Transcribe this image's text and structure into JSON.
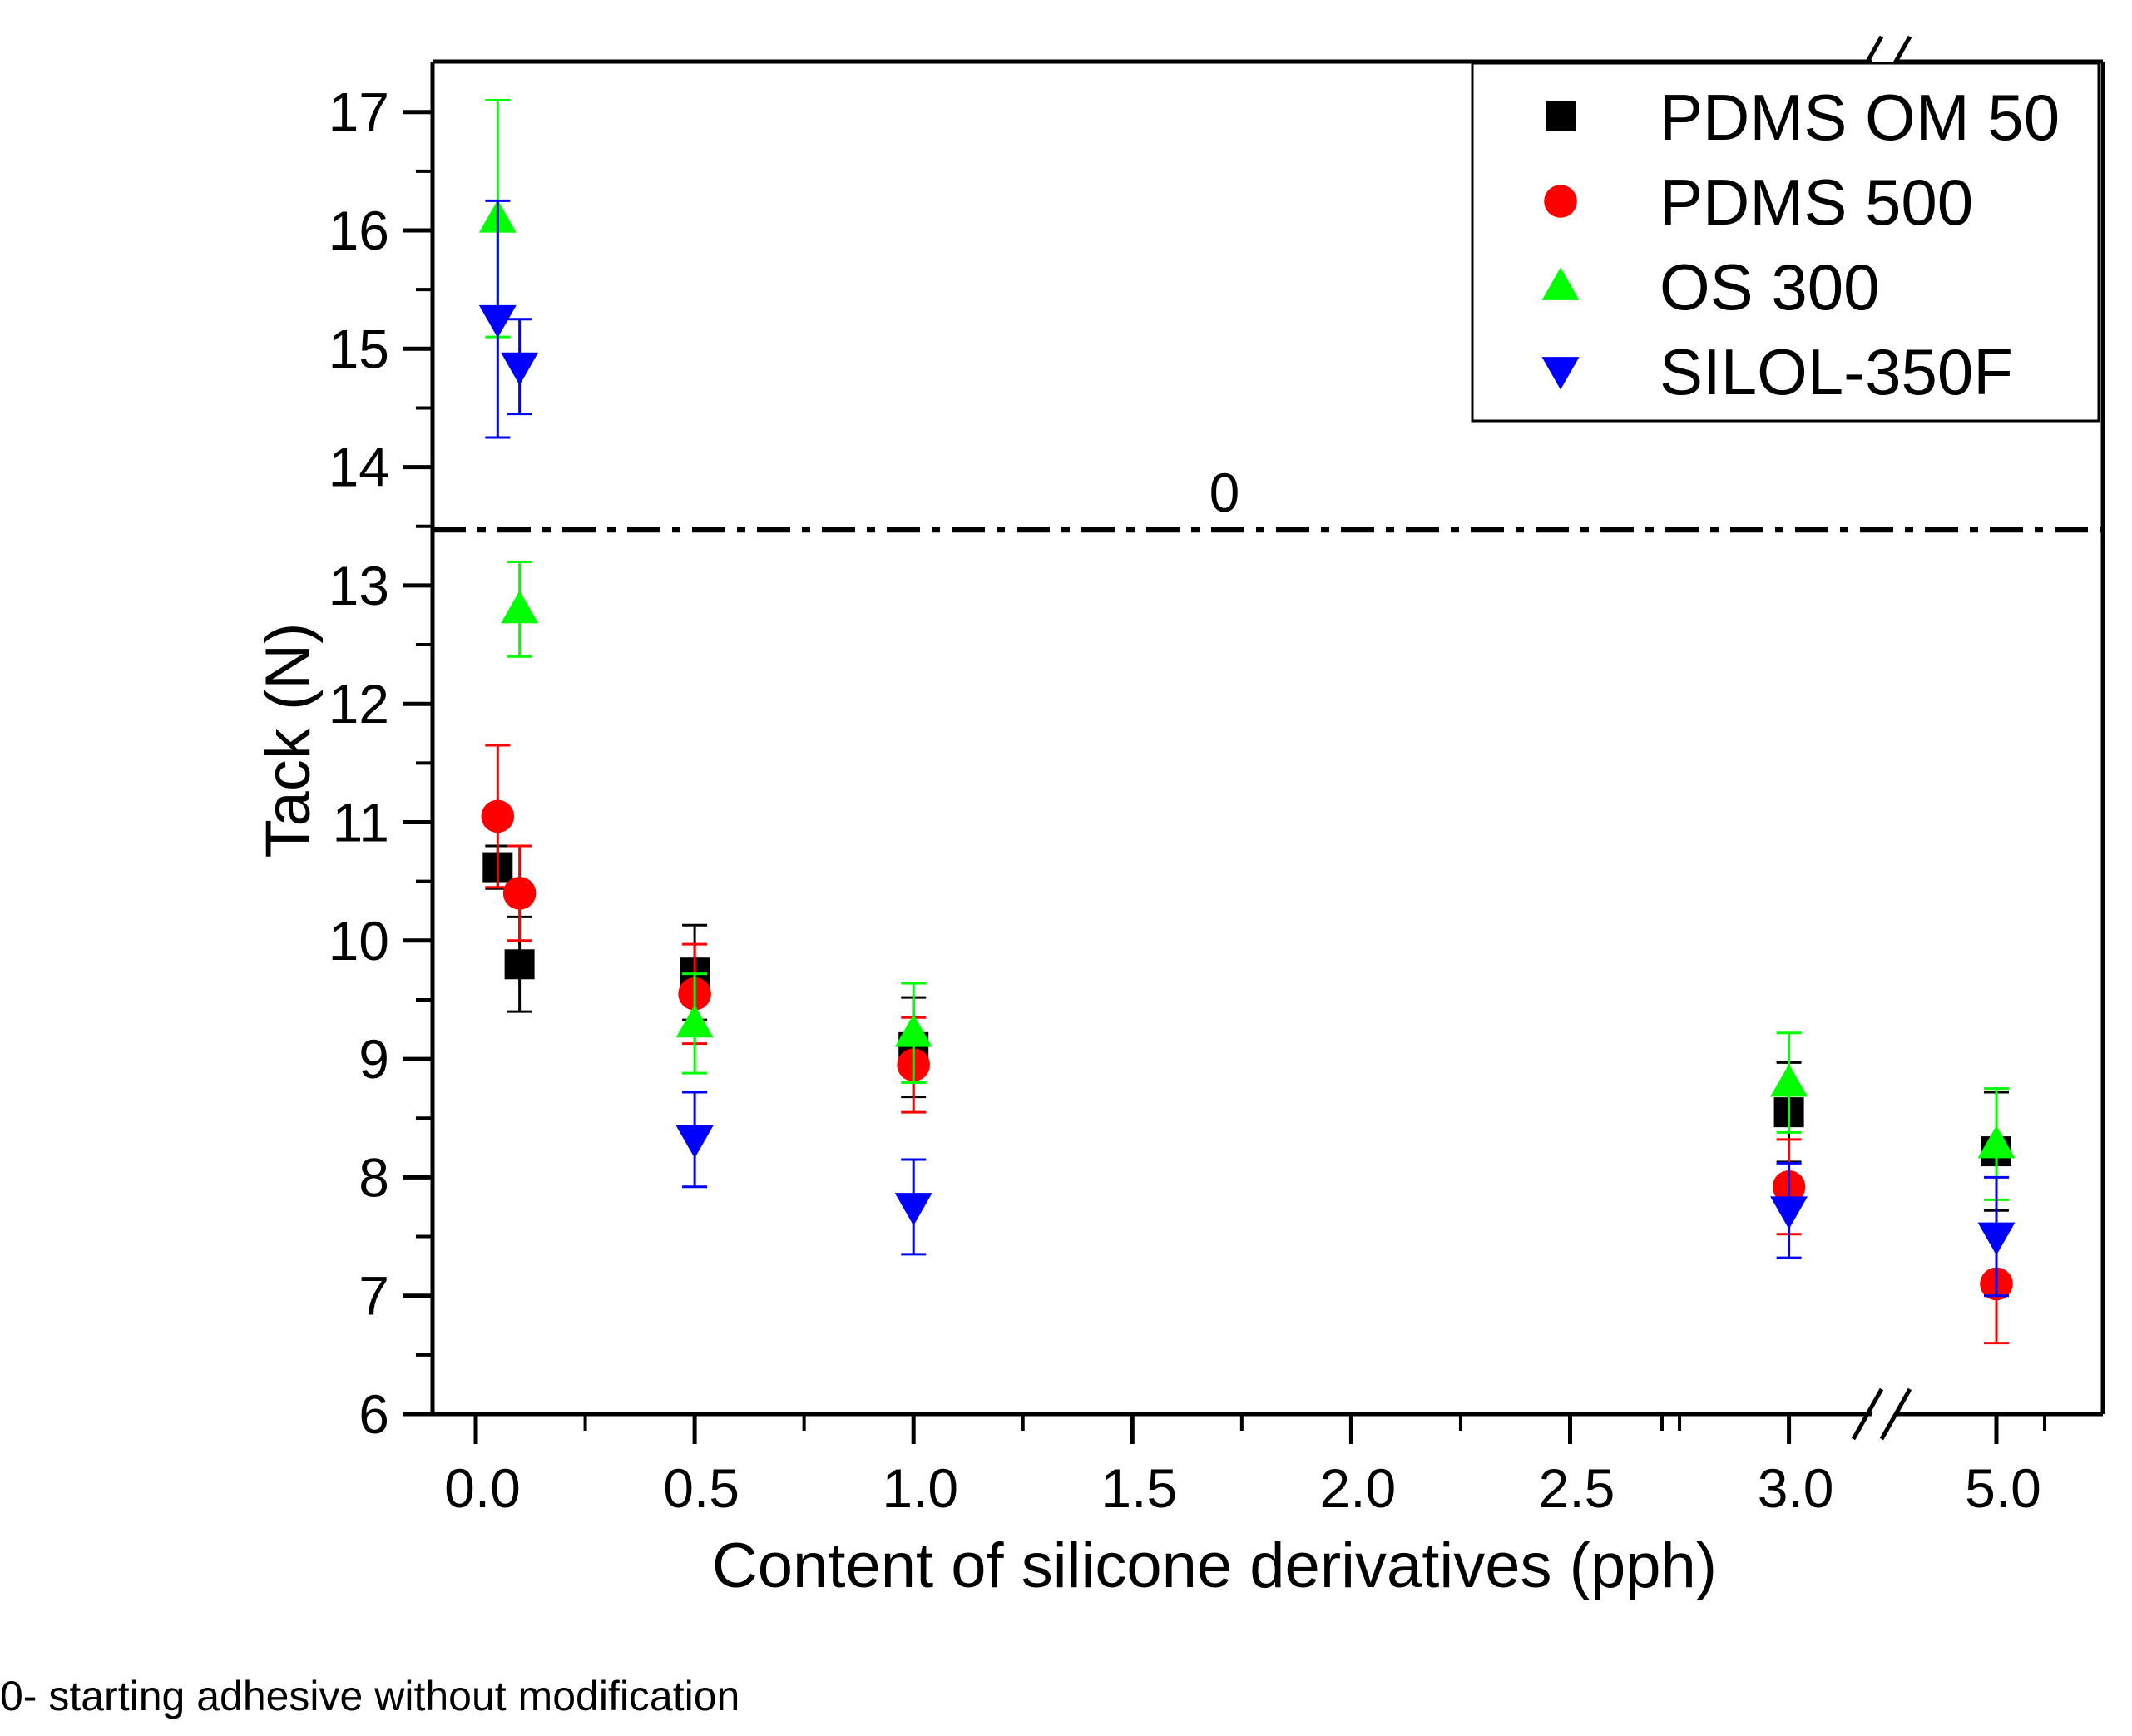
{
  "chart_data": {
    "type": "scatter",
    "title": "",
    "xlabel": "Content of silicone derivatives (pph)",
    "ylabel": "Tack (N)",
    "ylim": [
      6,
      17.5
    ],
    "y_ticks": [
      "6",
      "7",
      "8",
      "9",
      "10",
      "11",
      "12",
      "13",
      "14",
      "15",
      "16",
      "17"
    ],
    "x_ticks": [
      "0.0",
      "0.5",
      "1.0",
      "1.5",
      "2.0",
      "2.5",
      "3.0",
      "5.0"
    ],
    "x_break": "between 3.0 and 5.0 (axis break)",
    "reference_line": {
      "label": "0",
      "value": 13.5,
      "style": "dash-dot"
    },
    "legend_position": "top-right",
    "series": [
      {
        "name": "PDMS OM 50",
        "color": "#000000",
        "marker": "square",
        "points": [
          {
            "x": 0.05,
            "y": 10.62,
            "err": 0.18
          },
          {
            "x": 0.1,
            "y": 9.8,
            "err": 0.4
          },
          {
            "x": 0.5,
            "y": 9.73,
            "err": 0.4
          },
          {
            "x": 1.0,
            "y": 9.1,
            "err": 0.42
          },
          {
            "x": 3.0,
            "y": 8.55,
            "err": 0.42
          },
          {
            "x": 5.0,
            "y": 8.22,
            "err": 0.5
          }
        ]
      },
      {
        "name": "PDMS 500",
        "color": "#ff0000",
        "marker": "circle",
        "points": [
          {
            "x": 0.05,
            "y": 11.05,
            "err": 0.6
          },
          {
            "x": 0.1,
            "y": 10.4,
            "err": 0.4
          },
          {
            "x": 0.5,
            "y": 9.55,
            "err": 0.42
          },
          {
            "x": 1.0,
            "y": 8.95,
            "err": 0.4
          },
          {
            "x": 3.0,
            "y": 7.92,
            "err": 0.4
          },
          {
            "x": 5.0,
            "y": 7.1,
            "err": 0.5
          }
        ]
      },
      {
        "name": "OS 300",
        "color": "#00ff00",
        "marker": "triangle-up",
        "points": [
          {
            "x": 0.05,
            "y": 16.1,
            "err": 1.0
          },
          {
            "x": 0.1,
            "y": 12.8,
            "err": 0.4
          },
          {
            "x": 0.5,
            "y": 9.3,
            "err": 0.42
          },
          {
            "x": 1.0,
            "y": 9.22,
            "err": 0.42
          },
          {
            "x": 3.0,
            "y": 8.8,
            "err": 0.42
          },
          {
            "x": 5.0,
            "y": 8.28,
            "err": 0.47
          }
        ]
      },
      {
        "name": "SILOL-350F",
        "color": "#0000ff",
        "marker": "triangle-down",
        "points": [
          {
            "x": 0.05,
            "y": 15.25,
            "err": 1.0
          },
          {
            "x": 0.1,
            "y": 14.85,
            "err": 0.4
          },
          {
            "x": 0.5,
            "y": 8.32,
            "err": 0.4
          },
          {
            "x": 1.0,
            "y": 7.75,
            "err": 0.4
          },
          {
            "x": 3.0,
            "y": 7.72,
            "err": 0.4
          },
          {
            "x": 5.0,
            "y": 7.5,
            "err": 0.5
          }
        ]
      }
    ]
  },
  "footnote": "0- starting adhesive without modification"
}
